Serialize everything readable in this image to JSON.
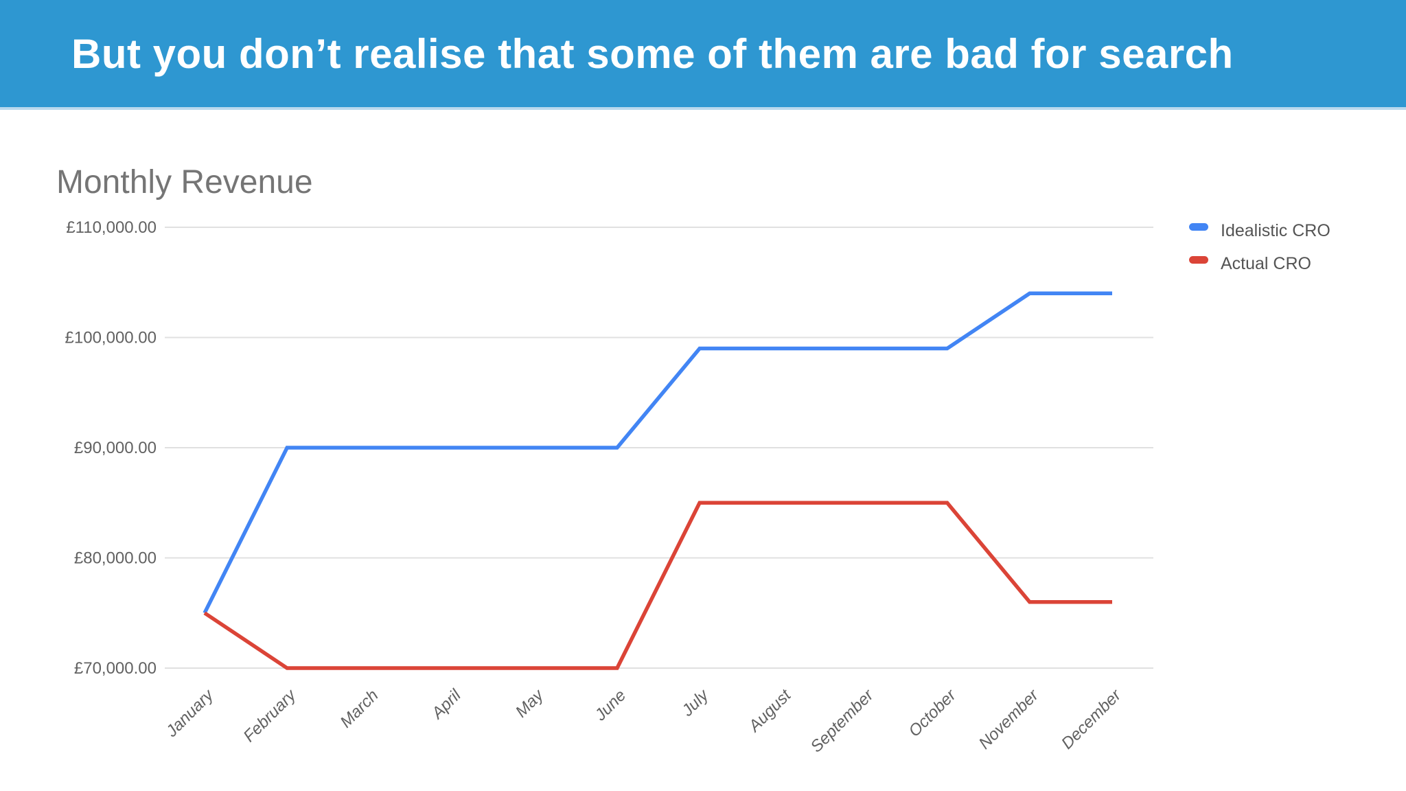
{
  "header": {
    "title": "But you don’t realise that some of them are bad for search",
    "background_color": "#2E97D1",
    "text_color": "#ffffff"
  },
  "chart_data": {
    "type": "line",
    "title": "Monthly Revenue",
    "categories": [
      "January",
      "February",
      "March",
      "April",
      "May",
      "June",
      "July",
      "August",
      "September",
      "October",
      "November",
      "December"
    ],
    "series": [
      {
        "name": "Idealistic CRO",
        "color": "#4285F4",
        "values": [
          75000,
          90000,
          90000,
          90000,
          90000,
          90000,
          99000,
          99000,
          99000,
          99000,
          104000,
          104000
        ]
      },
      {
        "name": "Actual CRO",
        "color": "#DB4437",
        "values": [
          75000,
          70000,
          70000,
          70000,
          70000,
          70000,
          85000,
          85000,
          85000,
          85000,
          76000,
          76000
        ]
      }
    ],
    "xlabel": "",
    "ylabel": "",
    "ylim": [
      70000,
      110000
    ],
    "ytick_step": 10000,
    "ytick_labels": [
      "£70,000.00",
      "£80,000.00",
      "£90,000.00",
      "£100,000.00",
      "£110,000.00"
    ],
    "grid": true,
    "legend_position": "right",
    "x_label_rotation_deg": -45,
    "grid_color": "#e0e0e0",
    "axis_label_color": "#616161",
    "legend_label_color": "#545454",
    "title_color": "#757575"
  }
}
